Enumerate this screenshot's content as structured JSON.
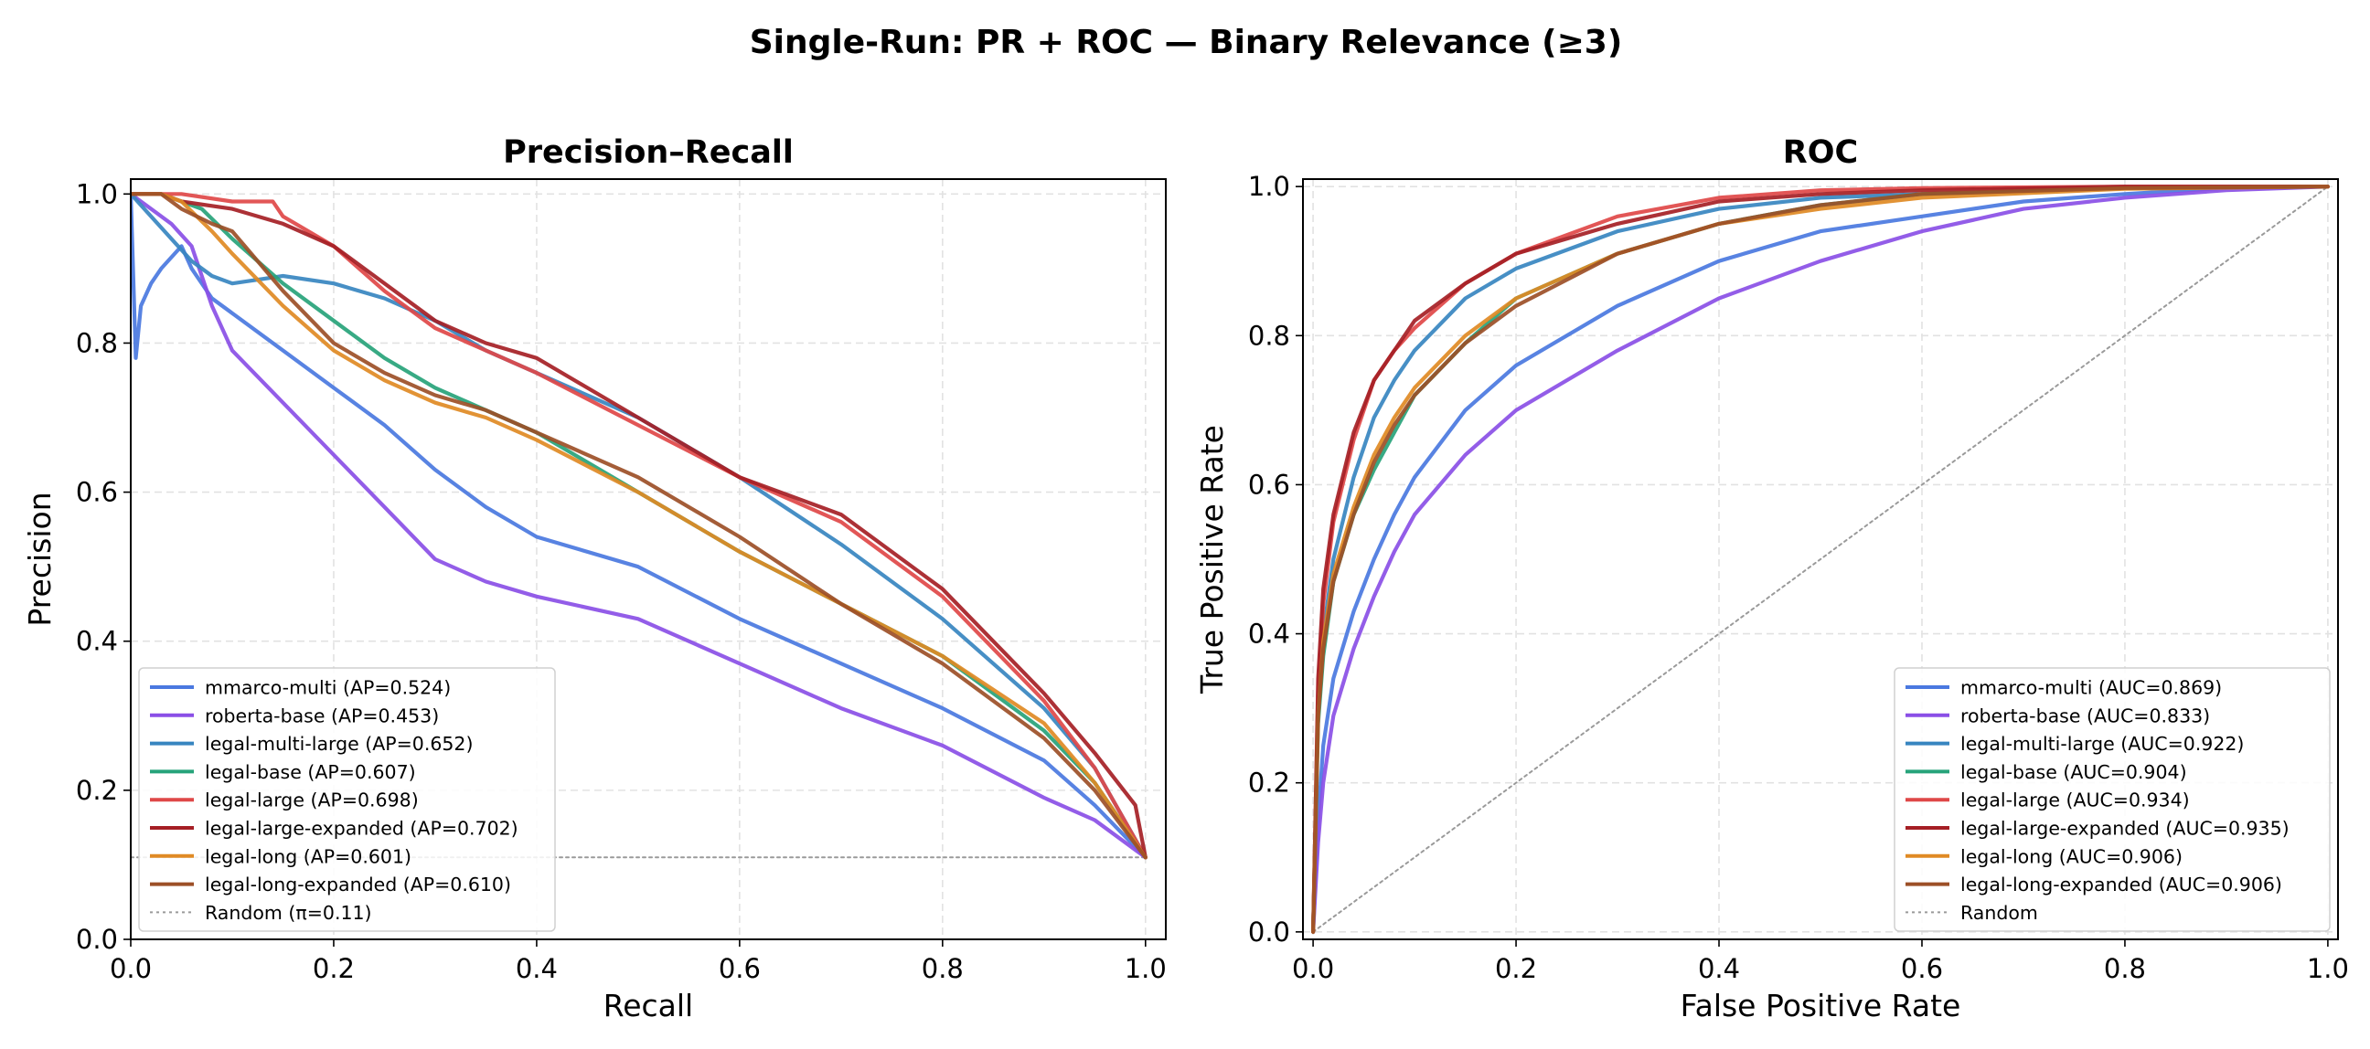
{
  "figure": {
    "suptitle": "Single-Run: PR + ROC — Binary Relevance (≥3)"
  },
  "colors": {
    "mmarco-multi": "#4a78e0",
    "roberta-base": "#8a4fe6",
    "legal-multi-large": "#3785c0",
    "legal-base": "#27a37a",
    "legal-large": "#df4848",
    "legal-large-expanded": "#a51f25",
    "legal-long": "#e08a24",
    "legal-long-expanded": "#9c4f27",
    "random": "#9a9a9a"
  },
  "chart_data": [
    {
      "type": "line",
      "title": "Precision–Recall",
      "xlabel": "Recall",
      "ylabel": "Precision",
      "xlim": [
        0,
        1.02
      ],
      "ylim": [
        0,
        1.02
      ],
      "xticks": [
        "0.0",
        "0.2",
        "0.4",
        "0.6",
        "0.8",
        "1.0"
      ],
      "yticks": [
        "0.0",
        "0.2",
        "0.4",
        "0.6",
        "0.8",
        "1.0"
      ],
      "grid": true,
      "legend_position": "lower-left",
      "series": [
        {
          "key": "mmarco-multi",
          "name": "mmarco-multi (AP=0.524)",
          "x": [
            0,
            0.005,
            0.01,
            0.02,
            0.03,
            0.05,
            0.06,
            0.08,
            0.1,
            0.15,
            0.2,
            0.25,
            0.3,
            0.35,
            0.4,
            0.5,
            0.6,
            0.7,
            0.8,
            0.9,
            0.95,
            1.0
          ],
          "y": [
            1.0,
            0.78,
            0.85,
            0.88,
            0.9,
            0.93,
            0.9,
            0.86,
            0.84,
            0.79,
            0.74,
            0.69,
            0.63,
            0.58,
            0.54,
            0.5,
            0.43,
            0.37,
            0.31,
            0.24,
            0.18,
            0.11
          ]
        },
        {
          "key": "roberta-base",
          "name": "roberta-base (AP=0.453)",
          "x": [
            0,
            0.02,
            0.04,
            0.06,
            0.08,
            0.1,
            0.15,
            0.2,
            0.25,
            0.3,
            0.35,
            0.4,
            0.5,
            0.6,
            0.7,
            0.8,
            0.9,
            0.95,
            1.0
          ],
          "y": [
            1.0,
            0.98,
            0.96,
            0.93,
            0.85,
            0.79,
            0.72,
            0.65,
            0.58,
            0.51,
            0.48,
            0.46,
            0.43,
            0.37,
            0.31,
            0.26,
            0.19,
            0.16,
            0.11
          ]
        },
        {
          "key": "legal-multi-large",
          "name": "legal-multi-large (AP=0.652)",
          "x": [
            0,
            0.02,
            0.04,
            0.06,
            0.08,
            0.1,
            0.15,
            0.2,
            0.25,
            0.3,
            0.35,
            0.4,
            0.5,
            0.6,
            0.7,
            0.8,
            0.9,
            0.95,
            1.0
          ],
          "y": [
            1.0,
            0.97,
            0.94,
            0.91,
            0.89,
            0.88,
            0.89,
            0.88,
            0.86,
            0.83,
            0.79,
            0.76,
            0.7,
            0.62,
            0.53,
            0.43,
            0.31,
            0.23,
            0.11
          ]
        },
        {
          "key": "legal-base",
          "name": "legal-base (AP=0.607)",
          "x": [
            0,
            0.03,
            0.05,
            0.07,
            0.1,
            0.15,
            0.2,
            0.25,
            0.3,
            0.35,
            0.4,
            0.5,
            0.6,
            0.7,
            0.8,
            0.9,
            0.95,
            1.0
          ],
          "y": [
            1.0,
            1.0,
            0.99,
            0.98,
            0.94,
            0.88,
            0.83,
            0.78,
            0.74,
            0.71,
            0.68,
            0.6,
            0.52,
            0.45,
            0.38,
            0.28,
            0.21,
            0.11
          ]
        },
        {
          "key": "legal-large",
          "name": "legal-large (AP=0.698)",
          "x": [
            0,
            0.05,
            0.1,
            0.14,
            0.15,
            0.2,
            0.25,
            0.3,
            0.35,
            0.4,
            0.5,
            0.6,
            0.7,
            0.8,
            0.9,
            0.95,
            1.0
          ],
          "y": [
            1.0,
            1.0,
            0.99,
            0.99,
            0.97,
            0.93,
            0.87,
            0.82,
            0.79,
            0.76,
            0.69,
            0.62,
            0.56,
            0.46,
            0.32,
            0.23,
            0.11
          ]
        },
        {
          "key": "legal-large-expanded",
          "name": "legal-large-expanded (AP=0.702)",
          "x": [
            0,
            0.03,
            0.05,
            0.1,
            0.15,
            0.2,
            0.25,
            0.3,
            0.35,
            0.4,
            0.5,
            0.6,
            0.7,
            0.8,
            0.9,
            0.95,
            0.99,
            1.0
          ],
          "y": [
            1.0,
            1.0,
            0.99,
            0.98,
            0.96,
            0.93,
            0.88,
            0.83,
            0.8,
            0.78,
            0.7,
            0.62,
            0.57,
            0.47,
            0.33,
            0.25,
            0.18,
            0.11
          ]
        },
        {
          "key": "legal-long",
          "name": "legal-long (AP=0.601)",
          "x": [
            0,
            0.03,
            0.05,
            0.08,
            0.1,
            0.15,
            0.2,
            0.25,
            0.3,
            0.35,
            0.4,
            0.5,
            0.6,
            0.7,
            0.8,
            0.9,
            0.95,
            1.0
          ],
          "y": [
            1.0,
            1.0,
            0.99,
            0.95,
            0.92,
            0.85,
            0.79,
            0.75,
            0.72,
            0.7,
            0.67,
            0.6,
            0.52,
            0.45,
            0.38,
            0.29,
            0.21,
            0.11
          ]
        },
        {
          "key": "legal-long-expanded",
          "name": "legal-long-expanded (AP=0.610)",
          "x": [
            0,
            0.03,
            0.05,
            0.08,
            0.1,
            0.15,
            0.2,
            0.25,
            0.3,
            0.35,
            0.4,
            0.5,
            0.6,
            0.7,
            0.8,
            0.9,
            0.95,
            1.0
          ],
          "y": [
            1.0,
            1.0,
            0.98,
            0.96,
            0.95,
            0.87,
            0.8,
            0.76,
            0.73,
            0.71,
            0.68,
            0.62,
            0.54,
            0.45,
            0.37,
            0.27,
            0.2,
            0.11
          ]
        },
        {
          "key": "random",
          "name": "Random (π=0.11)",
          "dashed": true,
          "x": [
            0,
            1.0
          ],
          "y": [
            0.11,
            0.11
          ]
        }
      ]
    },
    {
      "type": "line",
      "title": "ROC",
      "xlabel": "False Positive Rate",
      "ylabel": "True Positive Rate",
      "xlim": [
        -0.01,
        1.01
      ],
      "ylim": [
        -0.01,
        1.01
      ],
      "xticks": [
        "0.0",
        "0.2",
        "0.4",
        "0.6",
        "0.8",
        "1.0"
      ],
      "yticks": [
        "0.0",
        "0.2",
        "0.4",
        "0.6",
        "0.8",
        "1.0"
      ],
      "grid": true,
      "legend_position": "lower-right",
      "series": [
        {
          "key": "mmarco-multi",
          "name": "mmarco-multi (AUC=0.869)",
          "x": [
            0,
            0.005,
            0.01,
            0.02,
            0.04,
            0.06,
            0.08,
            0.1,
            0.15,
            0.2,
            0.3,
            0.4,
            0.5,
            0.6,
            0.7,
            0.8,
            0.9,
            1.0
          ],
          "y": [
            0,
            0.15,
            0.25,
            0.34,
            0.43,
            0.5,
            0.56,
            0.61,
            0.7,
            0.76,
            0.84,
            0.9,
            0.94,
            0.96,
            0.98,
            0.99,
            0.998,
            1.0
          ]
        },
        {
          "key": "roberta-base",
          "name": "roberta-base (AUC=0.833)",
          "x": [
            0,
            0.005,
            0.01,
            0.02,
            0.04,
            0.06,
            0.08,
            0.1,
            0.15,
            0.2,
            0.3,
            0.4,
            0.5,
            0.6,
            0.7,
            0.8,
            0.9,
            1.0
          ],
          "y": [
            0,
            0.12,
            0.2,
            0.29,
            0.38,
            0.45,
            0.51,
            0.56,
            0.64,
            0.7,
            0.78,
            0.85,
            0.9,
            0.94,
            0.97,
            0.985,
            0.995,
            1.0
          ]
        },
        {
          "key": "legal-multi-large",
          "name": "legal-multi-large (AUC=0.922)",
          "x": [
            0,
            0.005,
            0.01,
            0.02,
            0.04,
            0.06,
            0.08,
            0.1,
            0.15,
            0.2,
            0.3,
            0.4,
            0.5,
            0.6,
            0.8,
            1.0
          ],
          "y": [
            0,
            0.3,
            0.4,
            0.5,
            0.61,
            0.69,
            0.74,
            0.78,
            0.85,
            0.89,
            0.94,
            0.97,
            0.985,
            0.99,
            0.998,
            1.0
          ]
        },
        {
          "key": "legal-base",
          "name": "legal-base (AUC=0.904)",
          "x": [
            0,
            0.005,
            0.01,
            0.02,
            0.04,
            0.06,
            0.08,
            0.1,
            0.15,
            0.2,
            0.3,
            0.4,
            0.5,
            0.6,
            0.8,
            1.0
          ],
          "y": [
            0,
            0.28,
            0.37,
            0.47,
            0.56,
            0.62,
            0.67,
            0.72,
            0.79,
            0.85,
            0.91,
            0.95,
            0.975,
            0.99,
            0.998,
            1.0
          ]
        },
        {
          "key": "legal-large",
          "name": "legal-large (AUC=0.934)",
          "x": [
            0,
            0.005,
            0.01,
            0.02,
            0.04,
            0.06,
            0.08,
            0.1,
            0.15,
            0.2,
            0.3,
            0.4,
            0.5,
            0.6,
            0.8,
            1.0
          ],
          "y": [
            0,
            0.32,
            0.44,
            0.55,
            0.66,
            0.74,
            0.78,
            0.81,
            0.87,
            0.91,
            0.96,
            0.985,
            0.995,
            0.998,
            1.0,
            1.0
          ]
        },
        {
          "key": "legal-large-expanded",
          "name": "legal-large-expanded (AUC=0.935)",
          "x": [
            0,
            0.005,
            0.01,
            0.02,
            0.04,
            0.06,
            0.08,
            0.1,
            0.15,
            0.2,
            0.3,
            0.4,
            0.5,
            0.6,
            0.8,
            1.0
          ],
          "y": [
            0,
            0.34,
            0.46,
            0.56,
            0.67,
            0.74,
            0.78,
            0.82,
            0.87,
            0.91,
            0.95,
            0.98,
            0.99,
            0.995,
            1.0,
            1.0
          ]
        },
        {
          "key": "legal-long",
          "name": "legal-long (AUC=0.906)",
          "x": [
            0,
            0.005,
            0.01,
            0.02,
            0.04,
            0.06,
            0.08,
            0.1,
            0.15,
            0.2,
            0.3,
            0.4,
            0.5,
            0.6,
            0.8,
            1.0
          ],
          "y": [
            0,
            0.29,
            0.39,
            0.48,
            0.57,
            0.64,
            0.69,
            0.73,
            0.8,
            0.85,
            0.91,
            0.95,
            0.97,
            0.985,
            0.997,
            1.0
          ]
        },
        {
          "key": "legal-long-expanded",
          "name": "legal-long-expanded (AUC=0.906)",
          "x": [
            0,
            0.005,
            0.01,
            0.02,
            0.04,
            0.06,
            0.08,
            0.1,
            0.15,
            0.2,
            0.3,
            0.4,
            0.5,
            0.6,
            0.8,
            1.0
          ],
          "y": [
            0,
            0.29,
            0.38,
            0.47,
            0.56,
            0.63,
            0.68,
            0.72,
            0.79,
            0.84,
            0.91,
            0.95,
            0.975,
            0.99,
            0.998,
            1.0
          ]
        },
        {
          "key": "random",
          "name": "Random",
          "dashed": true,
          "x": [
            0,
            1.0
          ],
          "y": [
            0,
            1.0
          ]
        }
      ]
    }
  ]
}
